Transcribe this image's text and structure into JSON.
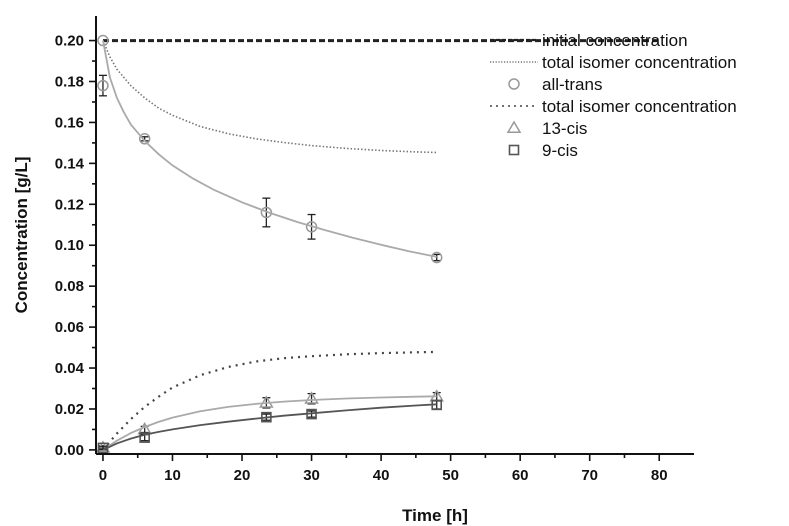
{
  "chart_data": {
    "type": "scatter",
    "xlabel": "Time [h]",
    "ylabel": "Concentration [g/L]",
    "xlim": [
      -1,
      85
    ],
    "ylim": [
      -0.002,
      0.212
    ],
    "xticks": [
      0,
      10,
      20,
      30,
      40,
      50,
      60,
      70,
      80
    ],
    "yticks": [
      0.0,
      0.02,
      0.04,
      0.06,
      0.08,
      0.1,
      0.12,
      0.14,
      0.16,
      0.18,
      0.2
    ],
    "ytick_decimals": 2,
    "grid": false,
    "legend_position": "top-right",
    "series": [
      {
        "name": "initial concentration",
        "kind": "line",
        "style": "dashed",
        "color": "#222222",
        "x": [
          0,
          80
        ],
        "y": [
          0.2,
          0.2
        ]
      },
      {
        "name": "total isomer concentration",
        "kind": "line",
        "style": "dense-dotted",
        "color": "#777777",
        "x": [
          0,
          1,
          2,
          4,
          6,
          8,
          10,
          14,
          18,
          22,
          26,
          30,
          35,
          40,
          45,
          48
        ],
        "y": [
          0.2,
          0.192,
          0.186,
          0.178,
          0.172,
          0.167,
          0.1635,
          0.158,
          0.1545,
          0.152,
          0.1502,
          0.1487,
          0.1473,
          0.1463,
          0.1456,
          0.1453
        ]
      },
      {
        "name": "all-trans",
        "kind": "points",
        "marker": "circle",
        "color": "#999999",
        "x": [
          0,
          0,
          6,
          23.5,
          30,
          48
        ],
        "y": [
          0.2,
          0.178,
          0.152,
          0.116,
          0.109,
          0.094
        ],
        "err": [
          0,
          0.005,
          0.001,
          0.007,
          0.006,
          0.0015
        ]
      },
      {
        "name": "all-trans fit",
        "kind": "line",
        "style": "solid",
        "color": "#aaaaaa",
        "x": [
          0,
          1,
          2,
          3,
          4,
          6,
          8,
          10,
          13,
          16,
          20,
          24,
          28,
          32,
          36,
          40,
          44,
          48
        ],
        "y": [
          0.2,
          0.182,
          0.172,
          0.165,
          0.159,
          0.151,
          0.1445,
          0.139,
          0.1325,
          0.127,
          0.121,
          0.1158,
          0.1113,
          0.1073,
          0.1036,
          0.1002,
          0.0971,
          0.0943
        ]
      },
      {
        "name": "total isomer concentration",
        "kind": "line",
        "style": "sparse-dotted",
        "color": "#444444",
        "x": [
          0,
          2,
          4,
          6,
          8,
          10,
          14,
          18,
          22,
          26,
          30,
          35,
          40,
          45,
          48
        ],
        "y": [
          0,
          0.008,
          0.015,
          0.021,
          0.026,
          0.0305,
          0.0365,
          0.0405,
          0.0432,
          0.0448,
          0.0458,
          0.0467,
          0.0473,
          0.0477,
          0.0479
        ]
      },
      {
        "name": "13-cis",
        "kind": "points",
        "marker": "triangle",
        "color": "#999999",
        "x": [
          0,
          6,
          23.5,
          30,
          48
        ],
        "y": [
          0.001,
          0.01,
          0.023,
          0.025,
          0.026
        ],
        "err": [
          0.001,
          0.0015,
          0.0025,
          0.0025,
          0.002
        ]
      },
      {
        "name": "13-cis fit",
        "kind": "line",
        "style": "solid",
        "color": "#aaaaaa",
        "x": [
          0,
          2,
          4,
          6,
          8,
          10,
          14,
          18,
          22,
          26,
          30,
          35,
          40,
          45,
          48
        ],
        "y": [
          0,
          0.0045,
          0.0082,
          0.0112,
          0.0137,
          0.0158,
          0.0189,
          0.021,
          0.0225,
          0.0236,
          0.0244,
          0.0251,
          0.0256,
          0.026,
          0.0262
        ]
      },
      {
        "name": "9-cis",
        "kind": "points",
        "marker": "square",
        "color": "#555555",
        "x": [
          0,
          6,
          23.5,
          30,
          48
        ],
        "y": [
          0.001,
          0.006,
          0.016,
          0.0175,
          0.022
        ],
        "err": [
          0.0005,
          0.0015,
          0.0015,
          0.0015,
          0.002
        ]
      },
      {
        "name": "9-cis fit",
        "kind": "line",
        "style": "solid",
        "color": "#555555",
        "x": [
          0,
          2,
          4,
          6,
          8,
          10,
          14,
          18,
          22,
          26,
          30,
          35,
          40,
          45,
          48
        ],
        "y": [
          0,
          0.0032,
          0.0055,
          0.0074,
          0.0088,
          0.01,
          0.0121,
          0.0138,
          0.0153,
          0.0167,
          0.0179,
          0.0193,
          0.0206,
          0.0217,
          0.0223
        ]
      }
    ],
    "legend": [
      {
        "label": "initial concentration",
        "symbol": "dashed"
      },
      {
        "label": "total isomer concentration",
        "symbol": "dense-dotted"
      },
      {
        "label": "all-trans",
        "symbol": "circle"
      },
      {
        "label": "total isomer concentration",
        "symbol": "sparse-dotted"
      },
      {
        "label": "13-cis",
        "symbol": "triangle"
      },
      {
        "label": "9-cis",
        "symbol": "square"
      }
    ]
  }
}
